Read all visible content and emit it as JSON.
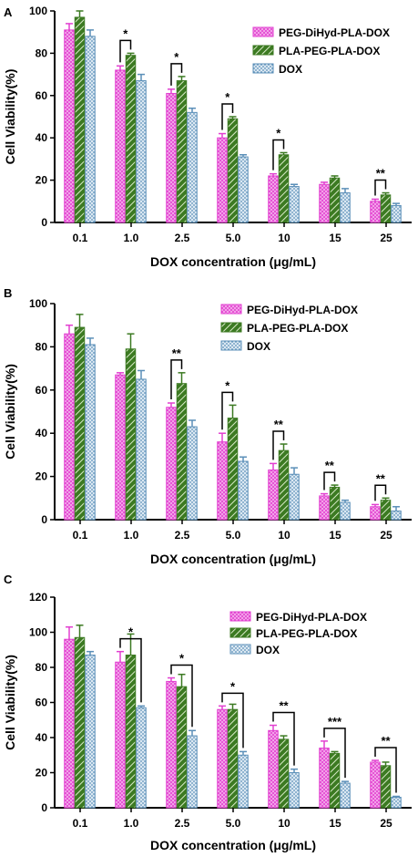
{
  "colors": {
    "PEG-DiHyd-PLA-DOX": "#e23fd0",
    "PLA-PEG-PLA-DOX": "#3c7a22",
    "DOX": "#5b8fb8"
  },
  "chart_data": [
    {
      "panel": "A",
      "type": "bar",
      "xlabel": "DOX concentration (μg/mL)",
      "ylabel": "Cell Viability(%)",
      "ylim": [
        0,
        100
      ],
      "yticks": [
        "0",
        "20",
        "40",
        "60",
        "80",
        "100"
      ],
      "categories": [
        "0.1",
        "1.0",
        "2.5",
        "5.0",
        "10",
        "15",
        "25"
      ],
      "legend_position": "top-right",
      "series": [
        {
          "name": "PEG-DiHyd-PLA-DOX",
          "values": [
            91,
            72,
            61,
            40,
            22,
            18,
            10
          ],
          "errors": [
            3,
            2,
            2,
            2,
            1,
            1,
            1
          ]
        },
        {
          "name": "PLA-PEG-PLA-DOX",
          "values": [
            97,
            79,
            67,
            49,
            32,
            21,
            13
          ],
          "errors": [
            3,
            1,
            2,
            1,
            1,
            1,
            1
          ]
        },
        {
          "name": "DOX",
          "values": [
            88,
            67,
            52,
            31,
            17,
            14,
            8
          ],
          "errors": [
            3,
            3,
            2,
            1,
            1,
            2,
            1
          ]
        }
      ],
      "significance": [
        {
          "category": "1.0",
          "label": "*",
          "bracket": [
            0,
            1
          ]
        },
        {
          "category": "2.5",
          "label": "*",
          "bracket": [
            0,
            1
          ]
        },
        {
          "category": "5.0",
          "label": "*",
          "bracket": [
            0,
            1
          ]
        },
        {
          "category": "10",
          "label": "*",
          "bracket": [
            0,
            1
          ]
        },
        {
          "category": "25",
          "label": "**",
          "bracket": [
            0,
            1
          ]
        }
      ]
    },
    {
      "panel": "B",
      "type": "bar",
      "xlabel": "DOX concentration (μg/mL)",
      "ylabel": "Cell Viability(%)",
      "ylim": [
        0,
        100
      ],
      "yticks": [
        "0",
        "20",
        "40",
        "60",
        "80",
        "100"
      ],
      "categories": [
        "0.1",
        "1.0",
        "2.5",
        "5.0",
        "10",
        "15",
        "25"
      ],
      "legend_position": "top-right",
      "series": [
        {
          "name": "PEG-DiHyd-PLA-DOX",
          "values": [
            86,
            67,
            52,
            36,
            23,
            11,
            6
          ],
          "errors": [
            4,
            1,
            2,
            4,
            3,
            1,
            1
          ]
        },
        {
          "name": "PLA-PEG-PLA-DOX",
          "values": [
            89,
            79,
            63,
            47,
            32,
            15,
            9
          ],
          "errors": [
            6,
            7,
            5,
            6,
            3,
            1,
            1
          ]
        },
        {
          "name": "DOX",
          "values": [
            81,
            65,
            43,
            27,
            21,
            8,
            4
          ],
          "errors": [
            3,
            4,
            3,
            2,
            3,
            1,
            2
          ]
        }
      ],
      "significance": [
        {
          "category": "2.5",
          "label": "**",
          "bracket": [
            0,
            1
          ]
        },
        {
          "category": "5.0",
          "label": "*",
          "bracket": [
            0,
            1
          ]
        },
        {
          "category": "10",
          "label": "**",
          "bracket": [
            0,
            1
          ]
        },
        {
          "category": "15",
          "label": "**",
          "bracket": [
            0,
            1
          ]
        },
        {
          "category": "25",
          "label": "**",
          "bracket": [
            0,
            1
          ]
        }
      ]
    },
    {
      "panel": "C",
      "type": "bar",
      "xlabel": "DOX concentration (μg/mL)",
      "ylabel": "Cell Viability(%)",
      "ylim": [
        0,
        120
      ],
      "yticks": [
        "0",
        "20",
        "40",
        "60",
        "80",
        "100",
        "120"
      ],
      "categories": [
        "0.1",
        "1.0",
        "2.5",
        "5.0",
        "10",
        "15",
        "25"
      ],
      "legend_position": "top-right",
      "series": [
        {
          "name": "PEG-DiHyd-PLA-DOX",
          "values": [
            96,
            83,
            72,
            56,
            44,
            34,
            26
          ],
          "errors": [
            7,
            6,
            2,
            2,
            3,
            4,
            1
          ]
        },
        {
          "name": "PLA-PEG-PLA-DOX",
          "values": [
            97,
            87,
            69,
            56,
            39,
            31,
            24
          ],
          "errors": [
            7,
            12,
            7,
            3,
            2,
            1,
            2
          ]
        },
        {
          "name": "DOX",
          "values": [
            87,
            57,
            41,
            30,
            20,
            14,
            6
          ],
          "errors": [
            2,
            1,
            3,
            2,
            2,
            1,
            0.5
          ]
        }
      ],
      "significance": [
        {
          "category": "1.0",
          "label": "*",
          "bracket": [
            0,
            2
          ]
        },
        {
          "category": "2.5",
          "label": "*",
          "bracket": [
            0,
            2
          ]
        },
        {
          "category": "5.0",
          "label": "*",
          "bracket": [
            0,
            2
          ]
        },
        {
          "category": "10",
          "label": "**",
          "bracket": [
            0,
            2
          ]
        },
        {
          "category": "15",
          "label": "***",
          "bracket": [
            0,
            2
          ]
        },
        {
          "category": "25",
          "label": "**",
          "bracket": [
            0,
            2
          ]
        }
      ]
    }
  ]
}
